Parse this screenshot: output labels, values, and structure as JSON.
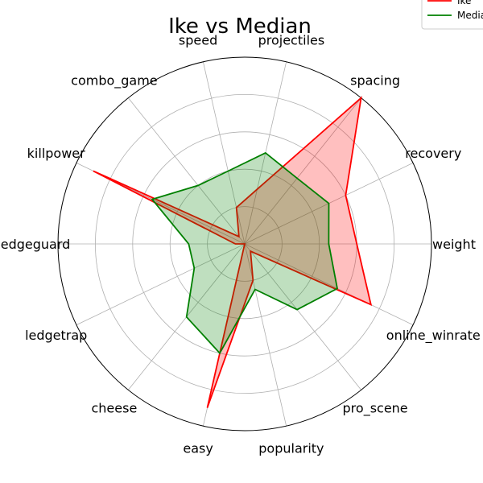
{
  "chart_data": {
    "type": "radar",
    "title": "Ike vs Median",
    "categories": [
      "weight",
      "recovery",
      "spacing",
      "projectiles",
      "speed",
      "combo_game",
      "killpower",
      "edgeguard",
      "ledgetrap",
      "cheese",
      "easy",
      "popularity",
      "pro_scene",
      "online_winrate"
    ],
    "rlim": [
      0,
      1
    ],
    "grid": true,
    "legend_position": "top-right",
    "series": [
      {
        "name": "Ike",
        "color": "#ff0000",
        "fill": "#ff0000",
        "fill_opacity": 0.25,
        "values": [
          0.6,
          0.6,
          1.0,
          0.3,
          0.2,
          0.05,
          0.9,
          0.05,
          0.0,
          0.0,
          0.9,
          0.2,
          0.05,
          0.75
        ]
      },
      {
        "name": "Median",
        "color": "#008000",
        "fill": "#008000",
        "fill_opacity": 0.25,
        "values": [
          0.45,
          0.5,
          0.45,
          0.5,
          0.4,
          0.4,
          0.55,
          0.3,
          0.3,
          0.5,
          0.6,
          0.25,
          0.45,
          0.55
        ]
      }
    ]
  }
}
